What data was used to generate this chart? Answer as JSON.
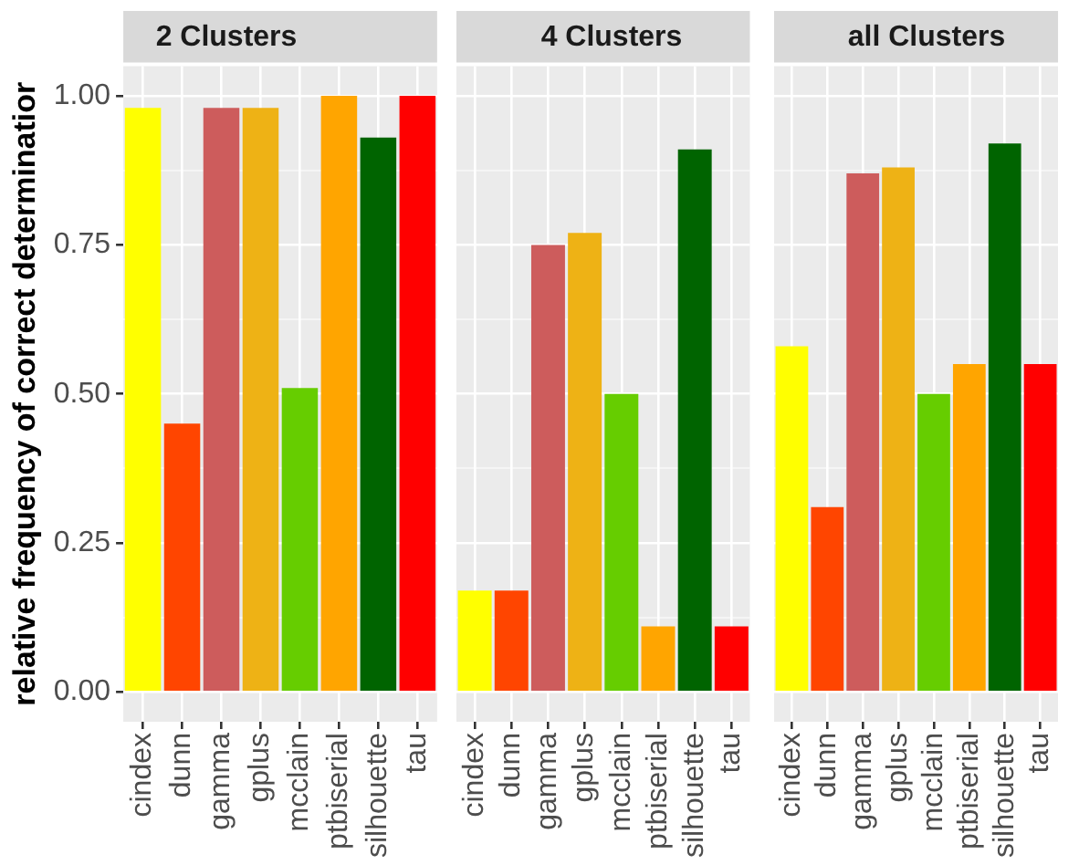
{
  "chart_data": [
    {
      "type": "bar",
      "title": "2 Clusters",
      "ylabel": "relative frequency of correct determinatior",
      "categories": [
        "cindex",
        "dunn",
        "gamma",
        "gplus",
        "mcclain",
        "ptbiserial",
        "silhouette",
        "tau"
      ],
      "values": [
        0.98,
        0.45,
        0.98,
        0.98,
        0.51,
        1.0,
        0.93,
        1.0
      ],
      "colors": [
        "#ffff00",
        "#ff4500",
        "#cd5c5c",
        "#eeb215",
        "#66cd00",
        "#ffa500",
        "#006400",
        "#ff0000"
      ],
      "ylim": [
        -0.05,
        1.05
      ],
      "yticks": [
        {
          "value": 0,
          "label": "0.00"
        },
        {
          "value": 0.125,
          "label": null
        },
        0.25,
        {
          "value": 0.375,
          "label": null
        },
        {
          "value": 0.5,
          "label": "0.50"
        },
        {
          "value": 0.625,
          "label": null
        },
        0.75,
        {
          "value": 0.875,
          "label": null
        },
        {
          "value": 1,
          "label": "1.00"
        }
      ],
      "grid": true,
      "legend": false
    },
    {
      "type": "bar",
      "title": "4 Clusters",
      "categories": [
        "cindex",
        "dunn",
        "gamma",
        "gplus",
        "mcclain",
        "ptbiserial",
        "silhouette",
        "tau"
      ],
      "values": [
        0.17,
        0.17,
        0.75,
        0.77,
        0.5,
        0.11,
        0.91,
        0.11
      ],
      "colors": [
        "#ffff00",
        "#ff4500",
        "#cd5c5c",
        "#eeb215",
        "#66cd00",
        "#ffa500",
        "#006400",
        "#ff0000"
      ],
      "ylim": [
        -0.05,
        1.05
      ],
      "yticks": [
        0.0,
        {
          "value": 0.125,
          "label": null
        },
        0.25,
        {
          "value": 0.375,
          "label": null
        },
        0.5,
        {
          "value": 0.625,
          "label": null
        },
        0.75,
        {
          "value": 0.875,
          "label": null
        },
        1.0
      ],
      "grid": true,
      "legend": false,
      "tick_labels": "x"
    },
    {
      "type": "bar",
      "title": "all Clusters",
      "categories": [
        "cindex",
        "dunn",
        "gamma",
        "gplus",
        "mcclain",
        "ptbiserial",
        "silhouette",
        "tau"
      ],
      "values": [
        0.58,
        0.31,
        0.87,
        0.88,
        0.5,
        0.55,
        0.92,
        0.55
      ],
      "colors": [
        "#ffff00",
        "#ff4500",
        "#cd5c5c",
        "#eeb215",
        "#66cd00",
        "#ffa500",
        "#006400",
        "#ff0000"
      ],
      "ylim": [
        -0.05,
        1.05
      ],
      "yticks": [
        0.0,
        {
          "value": 0.125,
          "label": null
        },
        0.25,
        {
          "value": 0.375,
          "label": null
        },
        0.5,
        {
          "value": 0.625,
          "label": null
        },
        0.75,
        {
          "value": 0.875,
          "label": null
        },
        1.0
      ],
      "grid": true,
      "legend": false,
      "tick_labels": "x"
    }
  ]
}
